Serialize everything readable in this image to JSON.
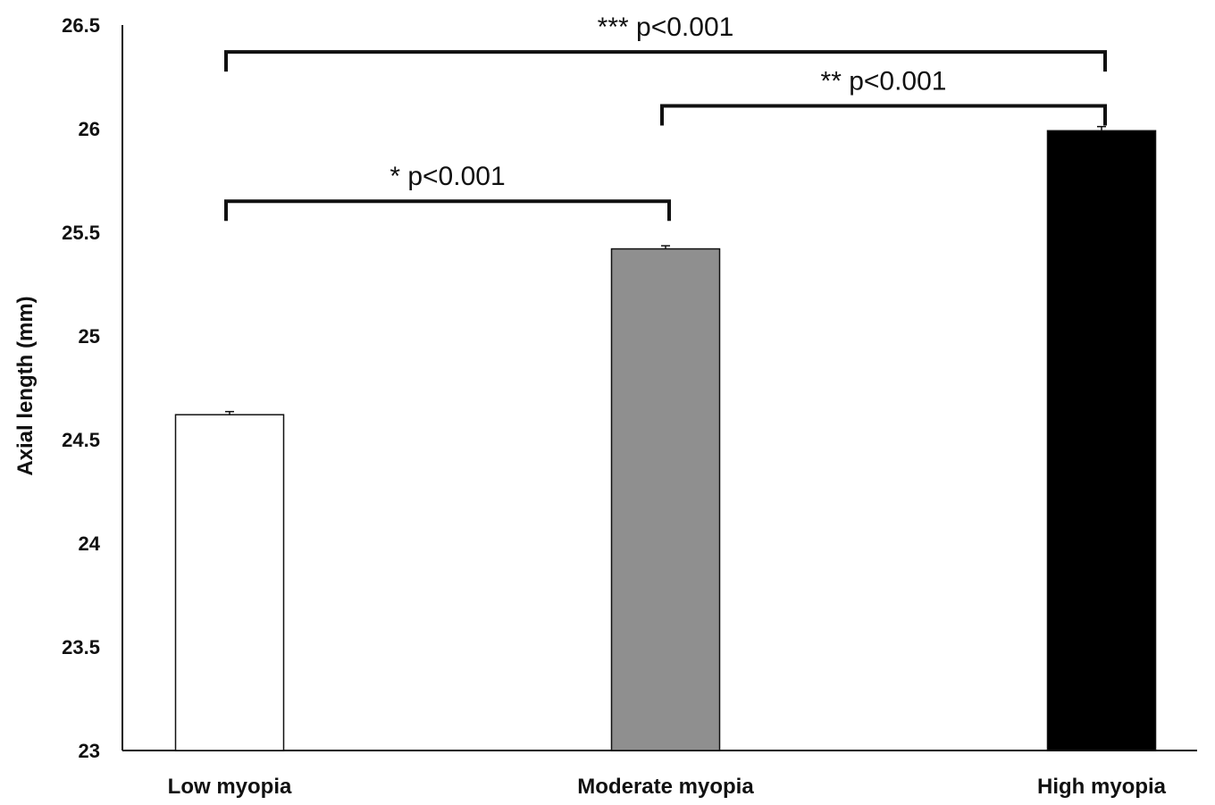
{
  "chart_data": {
    "type": "bar",
    "categories": [
      "Low myopia",
      "Moderate myopia",
      "High myopia"
    ],
    "values": [
      24.62,
      25.42,
      25.99
    ],
    "errors": [
      0.015,
      0.015,
      0.02
    ],
    "bar_colors": [
      "#ffffff",
      "#8f8f8f",
      "#000000"
    ],
    "ylabel": "Axial length (mm)",
    "xlabel": "",
    "ylim": [
      23,
      26.5
    ],
    "yticks": [
      23,
      23.5,
      24,
      24.5,
      25,
      25.5,
      26,
      26.5
    ],
    "ytick_labels": [
      "23",
      "23.5",
      "24",
      "24.5",
      "25",
      "25.5",
      "26",
      "26.5"
    ],
    "grid": false,
    "annotations": [
      {
        "text": "* p<0.001",
        "from": 0,
        "to": 1,
        "level": 25.65
      },
      {
        "text": "** p<0.001",
        "from": 1,
        "to": 2,
        "level": 26.11
      },
      {
        "text": "*** p<0.001",
        "from": 0,
        "to": 2,
        "level": 26.37
      }
    ]
  }
}
